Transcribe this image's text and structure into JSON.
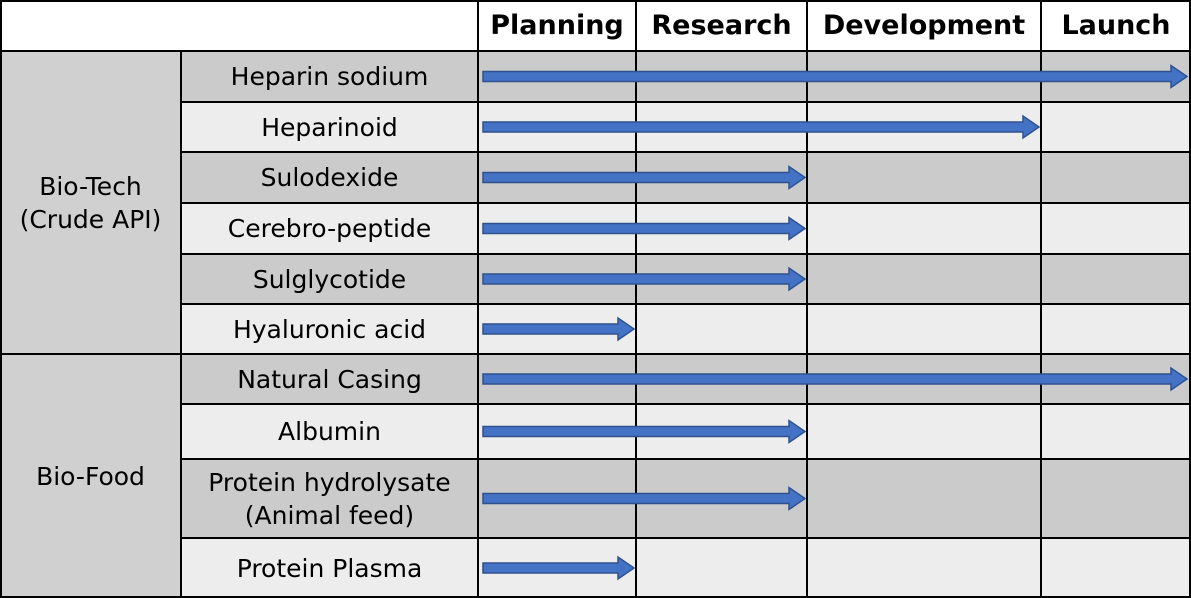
{
  "header": {
    "stages": [
      "Planning",
      "Research",
      "Development",
      "Launch"
    ]
  },
  "groups": [
    {
      "label": "Bio-Tech\n(Crude API)"
    },
    {
      "label": "Bio-Food"
    }
  ],
  "products": [
    {
      "name": "Heparin sodium",
      "group": 0,
      "stage_reached": "Launch",
      "progress_stages": 4.0
    },
    {
      "name": "Heparinoid",
      "group": 0,
      "stage_reached": "Development",
      "progress_stages": 3.0
    },
    {
      "name": "Sulodexide",
      "group": 0,
      "stage_reached": "Research",
      "progress_stages": 2.0
    },
    {
      "name": "Cerebro-peptide",
      "group": 0,
      "stage_reached": "Research",
      "progress_stages": 2.0
    },
    {
      "name": "Sulglycotide",
      "group": 0,
      "stage_reached": "Research",
      "progress_stages": 2.0
    },
    {
      "name": "Hyaluronic acid",
      "group": 0,
      "stage_reached": "Planning",
      "progress_stages": 1.0
    },
    {
      "name": "Natural Casing",
      "group": 1,
      "stage_reached": "Launch",
      "progress_stages": 4.0
    },
    {
      "name": "Albumin",
      "group": 1,
      "stage_reached": "Research",
      "progress_stages": 2.0
    },
    {
      "name": "Protein hydrolysate\n(Animal feed)",
      "group": 1,
      "stage_reached": "Research",
      "progress_stages": 2.0
    },
    {
      "name": "Protein Plasma",
      "group": 1,
      "stage_reached": "Planning",
      "progress_stages": 1.0
    }
  ],
  "colors": {
    "arrow": "#4472c4",
    "arrow_outline": "#2f528f",
    "row_dark": "#cbcbcb",
    "row_light": "#ededed",
    "group_bg": "#d0d0d0"
  }
}
